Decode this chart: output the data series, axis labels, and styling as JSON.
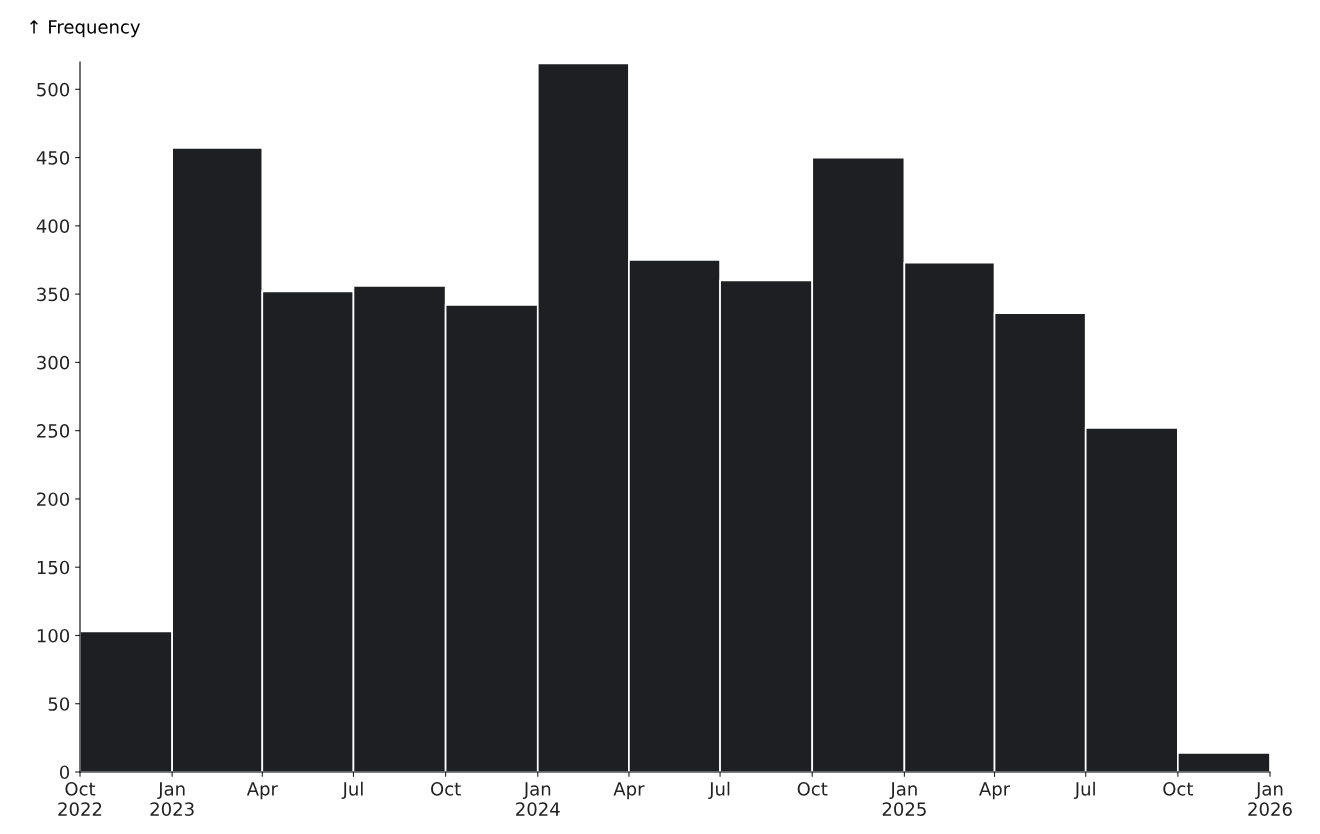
{
  "chart_data": {
    "type": "histogram",
    "ylabel": "↑ Frequency",
    "bins": [
      "2022-10-01",
      "2023-01-01",
      "2023-04-01",
      "2023-07-01",
      "2023-10-01",
      "2024-01-01",
      "2024-04-01",
      "2024-07-01",
      "2024-10-01",
      "2025-01-01",
      "2025-04-01",
      "2025-07-01",
      "2025-10-01",
      "2026-01-01"
    ],
    "values": [
      103,
      457,
      352,
      356,
      342,
      519,
      375,
      360,
      450,
      373,
      336,
      252,
      14
    ],
    "color": "#1d1f22",
    "ylim": [
      0,
      520
    ],
    "yticks": [
      0,
      50,
      100,
      150,
      200,
      250,
      300,
      350,
      400,
      450,
      500
    ],
    "xlim": [
      "2022-10-01",
      "2026-01-01"
    ],
    "xticks": [
      {
        "value": "2022-10-01",
        "label": "Oct\n2022"
      },
      {
        "value": "2023-01-01",
        "label": "Jan\n2023"
      },
      {
        "value": "2023-04-01",
        "label": "Apr"
      },
      {
        "value": "2023-07-01",
        "label": "Jul"
      },
      {
        "value": "2023-10-01",
        "label": "Oct"
      },
      {
        "value": "2024-01-01",
        "label": "Jan\n2024"
      },
      {
        "value": "2024-04-01",
        "label": "Apr"
      },
      {
        "value": "2024-07-01",
        "label": "Jul"
      },
      {
        "value": "2024-10-01",
        "label": "Oct"
      },
      {
        "value": "2025-01-01",
        "label": "Jan\n2025"
      },
      {
        "value": "2025-04-01",
        "label": "Apr"
      },
      {
        "value": "2025-07-01",
        "label": "Jul"
      },
      {
        "value": "2025-10-01",
        "label": "Oct"
      },
      {
        "value": "2026-01-01",
        "label": "Jan\n2026"
      }
    ],
    "grid": false
  }
}
